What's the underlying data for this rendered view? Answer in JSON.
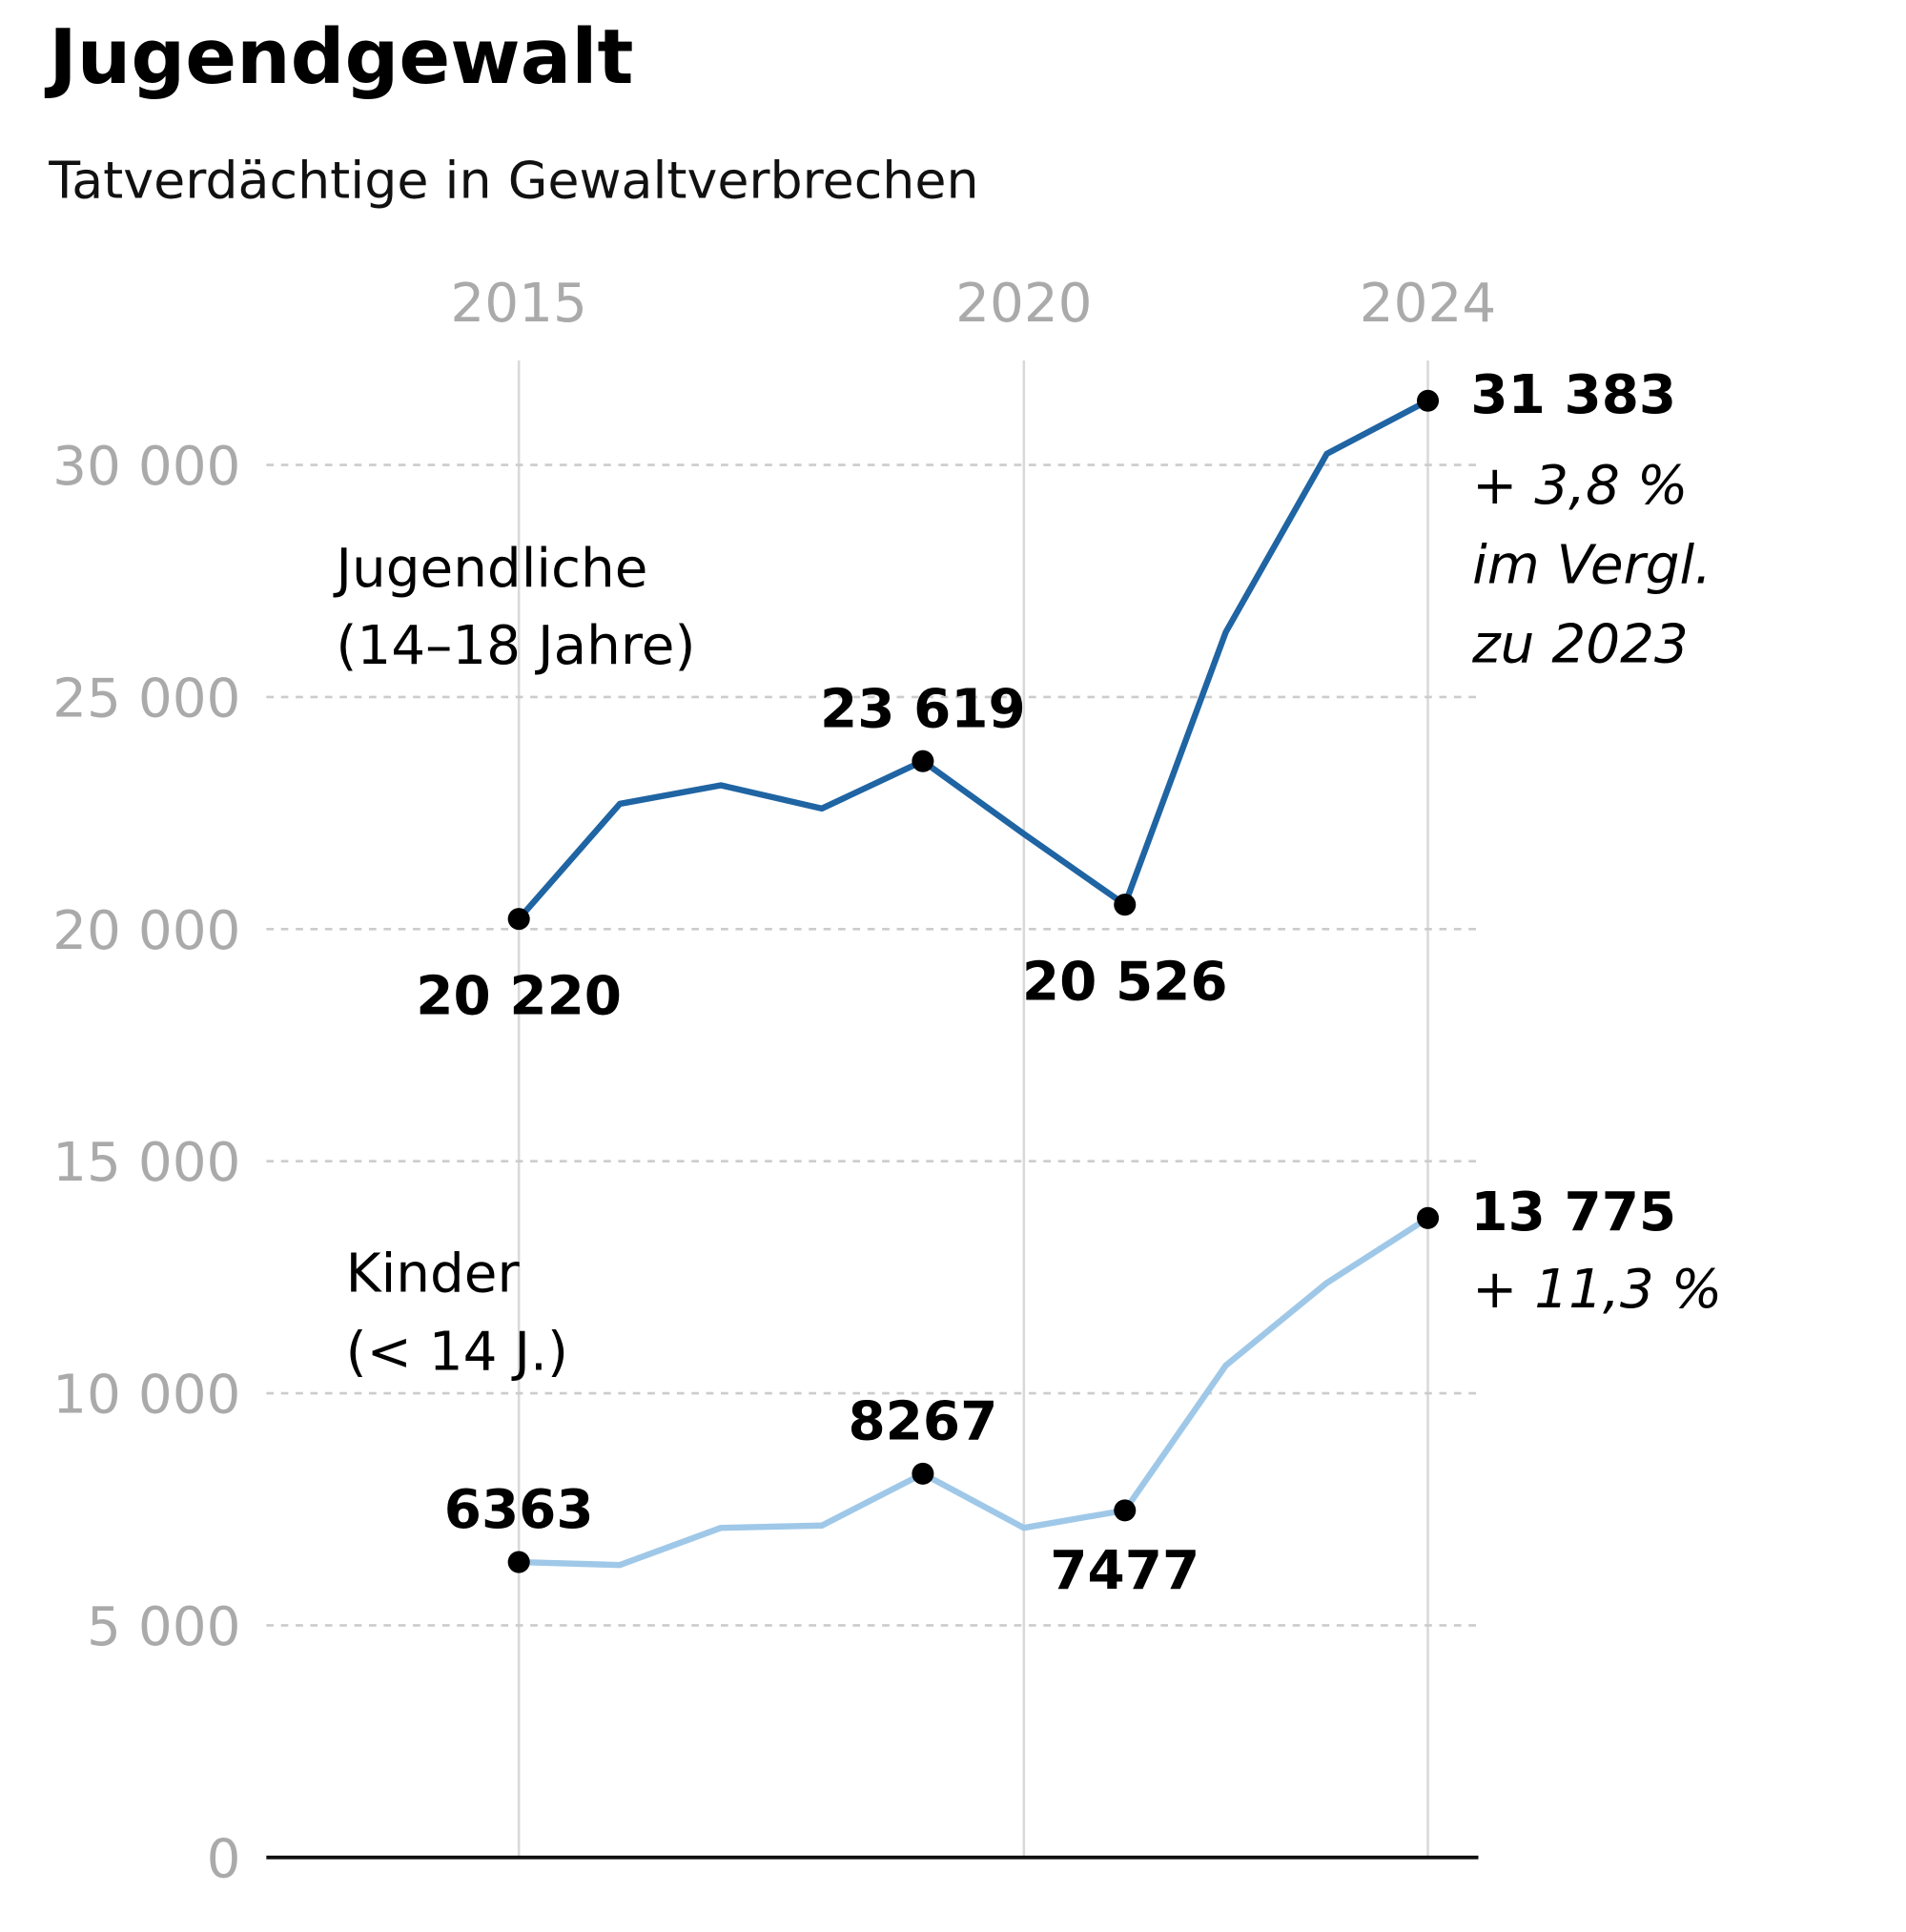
{
  "chart_data": {
    "type": "line",
    "title": "Jugendgewalt",
    "subtitle": "Tatverdächtige in Gewaltverbrechen",
    "x": [
      2015,
      2016,
      2017,
      2018,
      2019,
      2020,
      2021,
      2022,
      2023,
      2024
    ],
    "xlim": [
      2012.5,
      2024.5
    ],
    "xticks": [
      2015,
      2020,
      2024
    ],
    "ylim": [
      0,
      32250
    ],
    "yticks": [
      0,
      {
        "value": 5000,
        "label": "5 000"
      },
      {
        "value": 10000,
        "label": "10 000"
      },
      {
        "value": 15000,
        "label": "15 000"
      },
      {
        "value": 20000,
        "label": "20 000"
      },
      {
        "value": 25000,
        "label": "25 000"
      },
      {
        "value": 30000,
        "label": "30 000"
      }
    ],
    "grid": true,
    "series": [
      {
        "name": "Jugendliche",
        "color": "#1f64a3",
        "values": [
          20220,
          22700,
          23100,
          22600,
          23619,
          22050,
          20526,
          26400,
          30240,
          31383
        ],
        "value_labels": [
          "20 220",
          null,
          null,
          null,
          "23 619",
          null,
          "20 526",
          null,
          null,
          "31 383"
        ]
      },
      {
        "name": "Kinder",
        "color": "#9fc8e8",
        "values": [
          6363,
          6300,
          7100,
          7150,
          8267,
          7100,
          7477,
          10600,
          12380,
          13775
        ],
        "value_labels": [
          "6363",
          null,
          null,
          null,
          "8267",
          null,
          "7477",
          null,
          null,
          "13 775"
        ]
      }
    ],
    "annotations": [
      "(14–18 Jahre)",
      "(< 14 J.)",
      "+ 3,8 %",
      "im Vergl.",
      "zu 2023",
      "+ 11,3 %"
    ]
  }
}
